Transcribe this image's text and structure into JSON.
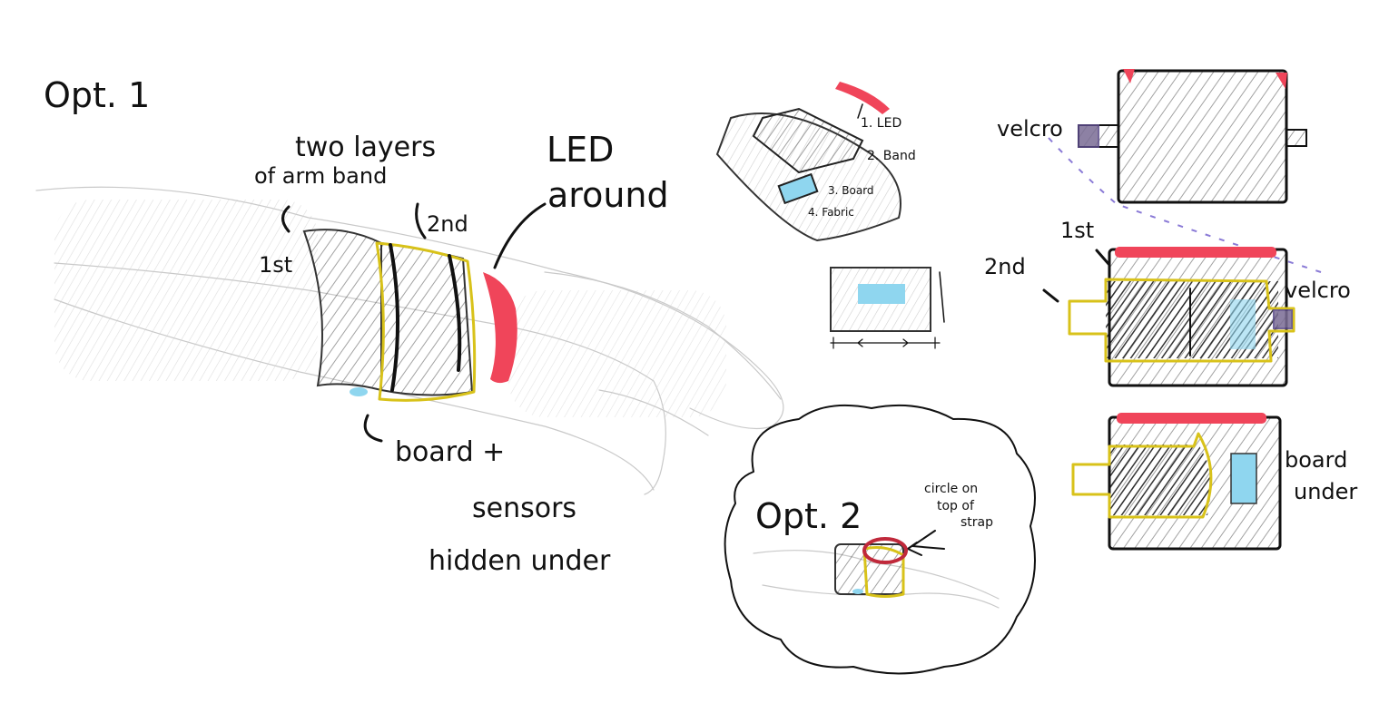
{
  "option1": {
    "title": "Opt. 1",
    "two_layers_line1": "two layers",
    "two_layers_line2": "of arm band",
    "first": "1st",
    "second": "2nd",
    "led_line1": "LED",
    "led_line2": "around",
    "board_line1": "board +",
    "board_line2": "sensors",
    "board_line3": "hidden under"
  },
  "exploded": {
    "led": "1. LED",
    "band": "2. Band",
    "board": "3. Board",
    "fabric": "4. Fabric"
  },
  "option2": {
    "title": "Opt. 2",
    "note_line1": "circle on",
    "note_line2": "top of",
    "note_line3": "strap"
  },
  "flat_views": {
    "velcro_top": "velcro",
    "first": "1st",
    "second": "2nd",
    "velcro_right": "velcro",
    "board_line1": "board",
    "board_line2": "under"
  },
  "colors": {
    "led": "#f0455a",
    "board": "#8fd6ef",
    "outline": "#d8c21a",
    "velcro": "#7a6c95"
  }
}
